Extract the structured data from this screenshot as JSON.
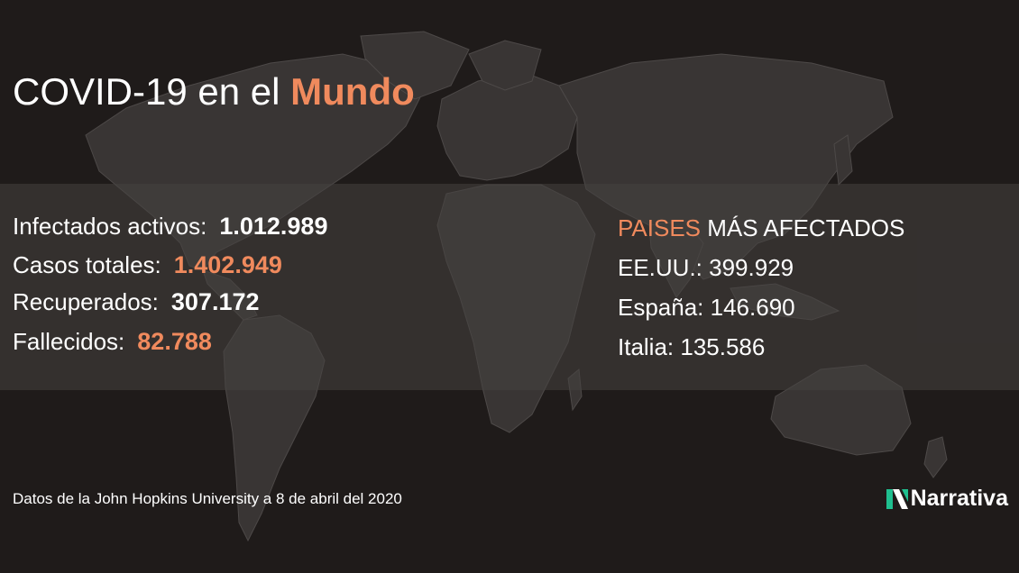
{
  "title": {
    "prefix": "COVID-19 en el ",
    "highlight": "Mundo"
  },
  "stats": [
    {
      "label": "Infectados activos:",
      "value": "1.012.989",
      "highlight": false
    },
    {
      "label": "Casos totales:",
      "value": "1.402.949",
      "highlight": true
    },
    {
      "label": "Recuperados:",
      "value": "307.172",
      "highlight": false
    },
    {
      "label": "Fallecidos:",
      "value": "82.788",
      "highlight": true
    }
  ],
  "countries": {
    "heading_highlight": "PAISES",
    "heading_rest": " MÁS AFECTADOS",
    "items": [
      "EE.UU.: 399.929",
      "España: 146.690",
      "Italia: 135.586"
    ]
  },
  "footer": "Datos de la John Hopkins University a 8 de abril del 2020",
  "brand": {
    "name": "Narrativa",
    "icon": "narrativa-logo-icon"
  },
  "colors": {
    "accent": "#f08a5d",
    "background": "#1f1b1a",
    "map": "#3a3736",
    "logo_green": "#1fbf8f"
  }
}
